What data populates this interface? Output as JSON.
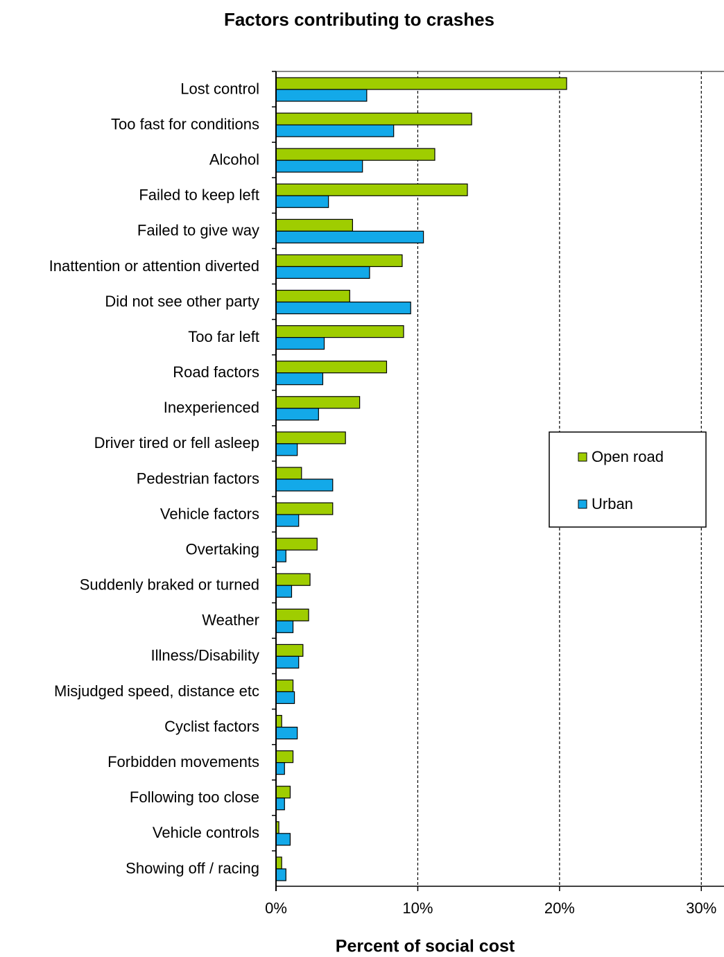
{
  "chart_data": {
    "type": "hbar",
    "title": "Factors contributing to crashes",
    "x_label": "Percent of social cost",
    "categories": [
      "Lost control",
      "Too fast for conditions",
      "Alcohol",
      "Failed to keep left",
      "Failed to give way",
      "Inattention or attention diverted",
      "Did not see other party",
      "Too far left",
      "Road factors",
      "Inexperienced",
      "Driver tired or fell asleep",
      "Pedestrian factors",
      "Vehicle factors",
      "Overtaking",
      "Suddenly braked or turned",
      "Weather",
      "Illness/Disability",
      "Misjudged speed, distance etc",
      "Cyclist factors",
      "Forbidden movements",
      "Following too close",
      "Vehicle controls",
      "Showing off / racing"
    ],
    "series": [
      {
        "name": "Open road",
        "color": "#9fcd00",
        "values": [
          20.5,
          13.8,
          11.2,
          13.5,
          5.4,
          8.9,
          5.2,
          9.0,
          7.8,
          5.9,
          4.9,
          1.8,
          4.0,
          2.9,
          2.4,
          2.3,
          1.9,
          1.2,
          0.4,
          1.2,
          1.0,
          0.2,
          0.4
        ]
      },
      {
        "name": "Urban",
        "color": "#13a9e9",
        "values": [
          6.4,
          8.3,
          6.1,
          3.7,
          10.4,
          6.6,
          9.5,
          3.4,
          3.3,
          3.0,
          1.5,
          4.0,
          1.6,
          0.7,
          1.1,
          1.2,
          1.6,
          1.3,
          1.5,
          0.6,
          0.6,
          1.0,
          0.7
        ]
      }
    ],
    "xlim": [
      0,
      31.6
    ],
    "xticks": [
      {
        "value": 0,
        "label": "0%"
      },
      {
        "value": 10,
        "label": "10%"
      },
      {
        "value": 20,
        "label": "20%"
      },
      {
        "value": 30,
        "label": "30%"
      }
    ],
    "grid": true,
    "legend": "right"
  }
}
